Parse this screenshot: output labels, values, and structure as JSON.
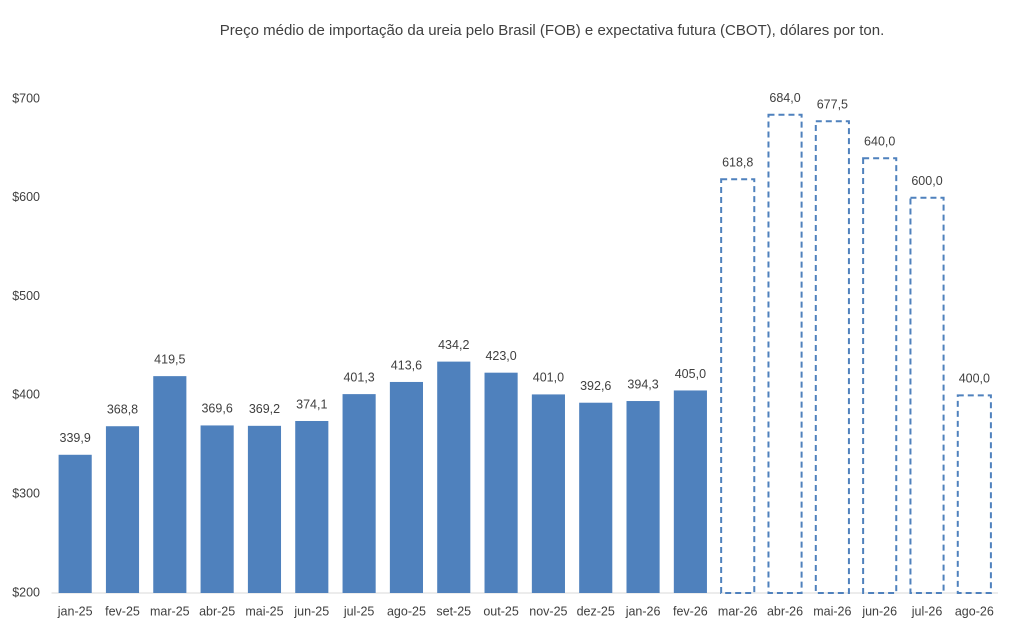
{
  "chart_data": {
    "type": "bar",
    "title": "Preço médio de importação da ureia pelo Brasil (FOB) e expectativa futura (CBOT), dólares por ton.",
    "categories": [
      "jan-25",
      "fev-25",
      "mar-25",
      "abr-25",
      "mai-25",
      "jun-25",
      "jul-25",
      "ago-25",
      "set-25",
      "out-25",
      "nov-25",
      "dez-25",
      "jan-26",
      "fev-26",
      "mar-26",
      "abr-26",
      "mai-26",
      "jun-26",
      "jul-26",
      "ago-26"
    ],
    "series": [
      {
        "color": "#4f81bd",
        "dashed": false,
        "values": [
          339.9,
          368.8,
          419.5,
          369.6,
          369.2,
          374.1,
          401.3,
          413.6,
          434.2,
          423.0,
          401.0,
          392.6,
          394.3,
          405.0,
          null,
          null,
          null,
          null,
          null,
          null
        ],
        "value_labels": [
          "339,9",
          "368,8",
          "419,5",
          "369,6",
          "369,2",
          "374,1",
          "401,3",
          "413,6",
          "434,2",
          "423,0",
          "401,0",
          "392,6",
          "394,3",
          "405,0",
          null,
          null,
          null,
          null,
          null,
          null
        ]
      },
      {
        "color": "#4f81bd",
        "dashed": true,
        "values": [
          null,
          null,
          null,
          null,
          null,
          null,
          null,
          null,
          null,
          null,
          null,
          null,
          null,
          null,
          618.8,
          684.0,
          677.5,
          640.0,
          600.0,
          400.0
        ],
        "value_labels": [
          null,
          null,
          null,
          null,
          null,
          null,
          null,
          null,
          null,
          null,
          null,
          null,
          null,
          null,
          "618,8",
          "684,0",
          "677,5",
          "640,0",
          "600,0",
          "400,0"
        ]
      }
    ],
    "ylim": [
      200,
      700
    ],
    "yticks": [
      {
        "value": 200,
        "label": "$200"
      },
      {
        "value": 300,
        "label": "$300"
      },
      {
        "value": 400,
        "label": "$400"
      },
      {
        "value": 500,
        "label": "$500"
      },
      {
        "value": 600,
        "label": "$600"
      },
      {
        "value": 700,
        "label": "$700"
      }
    ],
    "grid": false
  }
}
